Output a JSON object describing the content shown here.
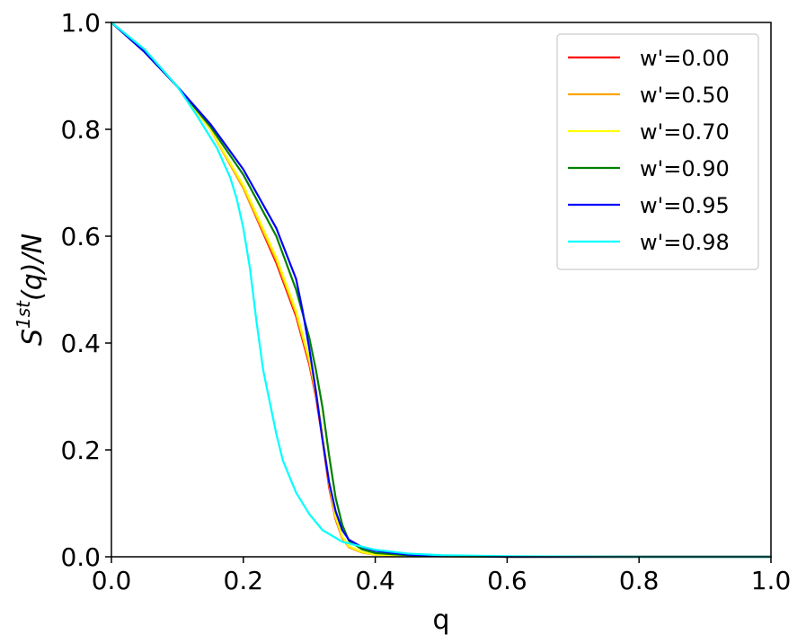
{
  "chart_data": {
    "type": "line",
    "title": "",
    "xlabel": "q",
    "ylabel_base": "S",
    "ylabel_sup": "1st",
    "ylabel_rest": "(q)/N",
    "xlim": [
      0.0,
      1.0
    ],
    "ylim": [
      0.0,
      1.0
    ],
    "xticks": [
      "0.0",
      "0.2",
      "0.4",
      "0.6",
      "0.8",
      "1.0"
    ],
    "yticks": [
      "0.0",
      "0.2",
      "0.4",
      "0.6",
      "0.8",
      "1.0"
    ],
    "grid": false,
    "legend_position": "top-right",
    "series": [
      {
        "name": "w'=0.00",
        "color": "#ff0000",
        "x": [
          0.0,
          0.05,
          0.1,
          0.15,
          0.2,
          0.25,
          0.28,
          0.3,
          0.31,
          0.32,
          0.33,
          0.34,
          0.35,
          0.36,
          0.38,
          0.4,
          0.45,
          0.5,
          0.6,
          0.8,
          1.0
        ],
        "y": [
          1.0,
          0.945,
          0.88,
          0.8,
          0.69,
          0.55,
          0.45,
          0.36,
          0.3,
          0.22,
          0.13,
          0.07,
          0.035,
          0.018,
          0.008,
          0.004,
          0.002,
          0.001,
          0.0,
          0.0,
          0.0
        ]
      },
      {
        "name": "w'=0.50",
        "color": "#ffa500",
        "x": [
          0.0,
          0.05,
          0.1,
          0.15,
          0.2,
          0.25,
          0.28,
          0.3,
          0.31,
          0.32,
          0.33,
          0.34,
          0.35,
          0.36,
          0.38,
          0.4,
          0.45,
          0.5,
          0.6,
          0.8,
          1.0
        ],
        "y": [
          1.0,
          0.945,
          0.88,
          0.8,
          0.69,
          0.555,
          0.455,
          0.365,
          0.305,
          0.225,
          0.135,
          0.072,
          0.036,
          0.018,
          0.008,
          0.004,
          0.002,
          0.001,
          0.0,
          0.0,
          0.0
        ]
      },
      {
        "name": "w'=0.70",
        "color": "#ffff00",
        "x": [
          0.0,
          0.05,
          0.1,
          0.15,
          0.2,
          0.25,
          0.28,
          0.3,
          0.31,
          0.32,
          0.33,
          0.34,
          0.35,
          0.36,
          0.38,
          0.4,
          0.45,
          0.5,
          0.6,
          0.8,
          1.0
        ],
        "y": [
          1.0,
          0.945,
          0.88,
          0.8,
          0.695,
          0.56,
          0.46,
          0.37,
          0.31,
          0.23,
          0.14,
          0.075,
          0.038,
          0.02,
          0.009,
          0.004,
          0.002,
          0.001,
          0.0,
          0.0,
          0.0
        ]
      },
      {
        "name": "w'=0.90",
        "color": "#008000",
        "x": [
          0.0,
          0.05,
          0.1,
          0.15,
          0.2,
          0.25,
          0.28,
          0.3,
          0.31,
          0.32,
          0.33,
          0.34,
          0.35,
          0.36,
          0.38,
          0.4,
          0.45,
          0.5,
          0.6,
          0.8,
          1.0
        ],
        "y": [
          1.0,
          0.945,
          0.88,
          0.805,
          0.715,
          0.6,
          0.5,
          0.41,
          0.35,
          0.28,
          0.19,
          0.11,
          0.06,
          0.03,
          0.014,
          0.007,
          0.003,
          0.001,
          0.0,
          0.0,
          0.0
        ]
      },
      {
        "name": "w'=0.95",
        "color": "#0000ff",
        "x": [
          0.0,
          0.05,
          0.1,
          0.15,
          0.2,
          0.25,
          0.28,
          0.29,
          0.3,
          0.31,
          0.32,
          0.33,
          0.34,
          0.35,
          0.36,
          0.38,
          0.4,
          0.45,
          0.5,
          0.6,
          0.8,
          1.0
        ],
        "y": [
          1.0,
          0.945,
          0.88,
          0.81,
          0.725,
          0.615,
          0.52,
          0.46,
          0.39,
          0.31,
          0.22,
          0.14,
          0.085,
          0.05,
          0.032,
          0.018,
          0.011,
          0.004,
          0.002,
          0.0,
          0.0,
          0.0
        ]
      },
      {
        "name": "w'=0.98",
        "color": "#00ffff",
        "x": [
          0.0,
          0.05,
          0.1,
          0.13,
          0.16,
          0.18,
          0.19,
          0.2,
          0.21,
          0.22,
          0.23,
          0.24,
          0.25,
          0.26,
          0.28,
          0.3,
          0.32,
          0.35,
          0.4,
          0.45,
          0.5,
          0.6,
          0.8,
          1.0
        ],
        "y": [
          1.0,
          0.95,
          0.88,
          0.825,
          0.765,
          0.71,
          0.67,
          0.615,
          0.54,
          0.44,
          0.35,
          0.29,
          0.23,
          0.18,
          0.12,
          0.08,
          0.05,
          0.028,
          0.013,
          0.006,
          0.003,
          0.001,
          0.0,
          0.0
        ]
      }
    ]
  }
}
